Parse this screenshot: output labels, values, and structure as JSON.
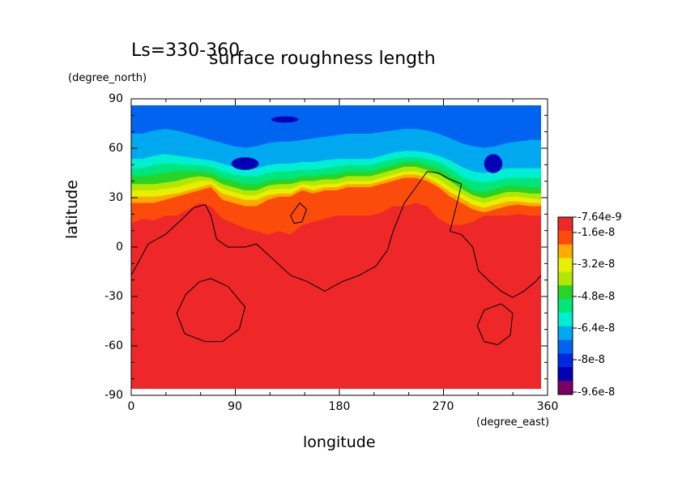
{
  "chart_data": {
    "type": "heatmap",
    "period": "Ls=330-360",
    "title": "surface roughness length",
    "xlabel": "longitude",
    "xunit": "(degree_east)",
    "ylabel": "latitude",
    "yunit": "(degree_north)",
    "xlim": [
      0,
      360
    ],
    "ylim": [
      -90,
      90
    ],
    "xticks": [
      "0",
      "90",
      "180",
      "270",
      "360"
    ],
    "yticks": [
      "90",
      "60",
      "30",
      "0",
      "-30",
      "-60",
      "-90"
    ],
    "colorbar": {
      "labels": [
        "-7.64e-9",
        "-1.6e-8",
        "-3.2e-8",
        "-4.8e-8",
        "-6.4e-8",
        "-8e-8",
        "-9.6e-8"
      ],
      "colors": [
        "#ee2828",
        "#fc4c0c",
        "#ffaa00",
        "#e6f000",
        "#b4e600",
        "#28d428",
        "#00e67a",
        "#00eed2",
        "#00a8f0",
        "#0064f0",
        "#0028e0",
        "#0000b4",
        "#7a0064"
      ]
    },
    "bands": [
      {
        "level": 0,
        "lat_boundary": [
          -30,
          -28,
          -30,
          -29,
          -30,
          -28,
          -27,
          -25,
          -26,
          -27,
          -28,
          -25,
          -22,
          -22,
          -24,
          -25,
          -24,
          -22,
          -20,
          -23,
          -26,
          -28,
          -30,
          -30,
          -28,
          -26,
          -28,
          -28,
          -29,
          -30,
          -29,
          -30,
          -30,
          -31,
          -31,
          -30,
          -30
        ]
      },
      {
        "level": 1,
        "lat_boundary": [
          15,
          18,
          17,
          20,
          20,
          24,
          28,
          26,
          18,
          15,
          12,
          10,
          8,
          10,
          8,
          14,
          16,
          18,
          20,
          20,
          20,
          20,
          22,
          26,
          26,
          28,
          26,
          18,
          14,
          14,
          16,
          20,
          20,
          20,
          21,
          20,
          20
        ]
      },
      {
        "level": 2,
        "lat_boundary": [
          28,
          28,
          28,
          30,
          32,
          34,
          36,
          38,
          30,
          28,
          26,
          26,
          30,
          32,
          32,
          36,
          34,
          36,
          36,
          38,
          38,
          38,
          40,
          42,
          44,
          44,
          42,
          38,
          32,
          28,
          24,
          22,
          24,
          26,
          27,
          26,
          26
        ]
      },
      {
        "level": 3,
        "lat_boundary": [
          32,
          32,
          32,
          33,
          34,
          36,
          38,
          40,
          34,
          32,
          30,
          30,
          33,
          34,
          34,
          38,
          36,
          38,
          38,
          40,
          40,
          40,
          42,
          44,
          46,
          46,
          44,
          40,
          35,
          31,
          27,
          25,
          27,
          29,
          29,
          28,
          28
        ]
      },
      {
        "level": 4,
        "lat_boundary": [
          36,
          36,
          36,
          37,
          38,
          40,
          42,
          42,
          37,
          35,
          33,
          33,
          36,
          37,
          37,
          40,
          39,
          40,
          40,
          42,
          42,
          42,
          44,
          46,
          48,
          48,
          46,
          43,
          38,
          34,
          30,
          28,
          30,
          32,
          32,
          31,
          30
        ]
      },
      {
        "level": 5,
        "lat_boundary": [
          40,
          40,
          40,
          41,
          42,
          44,
          45,
          44,
          40,
          38,
          36,
          36,
          39,
          40,
          40,
          42,
          42,
          43,
          43,
          45,
          45,
          45,
          47,
          49,
          51,
          51,
          49,
          46,
          42,
          37,
          33,
          31,
          33,
          35,
          35,
          34,
          34
        ]
      },
      {
        "level": 6,
        "lat_boundary": [
          45,
          45,
          46,
          47,
          48,
          48,
          48,
          47,
          44,
          42,
          40,
          40,
          42,
          43,
          43,
          45,
          45,
          46,
          46,
          48,
          48,
          48,
          50,
          52,
          54,
          54,
          52,
          50,
          46,
          41,
          36,
          35,
          37,
          39,
          39,
          38,
          38
        ]
      },
      {
        "level": 7,
        "lat_boundary": [
          50,
          50,
          52,
          53,
          53,
          52,
          52,
          51,
          48,
          46,
          45,
          45,
          47,
          48,
          48,
          49,
          49,
          50,
          51,
          52,
          52,
          52,
          54,
          56,
          57,
          57,
          56,
          54,
          50,
          45,
          42,
          41,
          42,
          44,
          44,
          44,
          44
        ]
      },
      {
        "level": 8,
        "lat_boundary": [
          56,
          56,
          58,
          59,
          58,
          57,
          56,
          55,
          53,
          51,
          50,
          50,
          52,
          53,
          53,
          54,
          54,
          55,
          56,
          56,
          56,
          56,
          58,
          60,
          61,
          61,
          60,
          58,
          55,
          51,
          48,
          47,
          48,
          50,
          50,
          50,
          50
        ]
      },
      {
        "level": 9,
        "lat_boundary": [
          72,
          72,
          74,
          75,
          74,
          72,
          70,
          68,
          66,
          64,
          63,
          64,
          66,
          67,
          67,
          68,
          69,
          70,
          71,
          72,
          72,
          72,
          73,
          74,
          75,
          75,
          74,
          72,
          69,
          66,
          64,
          63,
          64,
          66,
          67,
          68,
          68
        ]
      },
      {
        "level": 10,
        "lat_boundary": [
          90,
          90,
          90,
          90,
          90,
          90,
          90,
          90,
          90,
          90,
          90,
          90,
          90,
          90,
          90,
          90,
          90,
          90,
          90,
          90,
          90,
          90,
          90,
          90,
          90,
          90,
          90,
          90,
          90,
          90,
          90,
          90,
          90,
          90,
          90,
          90,
          90
        ]
      }
    ],
    "dark_blobs": [
      {
        "lon": 100,
        "lat": 53,
        "rx": 12,
        "ry": 4
      },
      {
        "lon": 318,
        "lat": 53,
        "rx": 8,
        "ry": 6
      },
      {
        "lon": 135,
        "lat": 81,
        "rx": 12,
        "ry": 2
      }
    ],
    "contours": [
      [
        [
          0,
          -18
        ],
        [
          15,
          2
        ],
        [
          30,
          8
        ],
        [
          45,
          18
        ],
        [
          55,
          25
        ],
        [
          65,
          27
        ],
        [
          70,
          20
        ],
        [
          75,
          5
        ],
        [
          85,
          0
        ],
        [
          100,
          0
        ],
        [
          110,
          2
        ],
        [
          125,
          -8
        ],
        [
          140,
          -18
        ],
        [
          155,
          -22
        ],
        [
          170,
          -28
        ],
        [
          185,
          -22
        ],
        [
          200,
          -18
        ],
        [
          215,
          -12
        ],
        [
          225,
          -2
        ],
        [
          230,
          10
        ],
        [
          240,
          28
        ],
        [
          250,
          38
        ],
        [
          260,
          48
        ],
        [
          270,
          47
        ],
        [
          280,
          43
        ],
        [
          290,
          40
        ],
        [
          287,
          30
        ],
        [
          280,
          10
        ],
        [
          290,
          8
        ],
        [
          300,
          0
        ],
        [
          305,
          -15
        ],
        [
          315,
          -22
        ],
        [
          325,
          -28
        ],
        [
          335,
          -32
        ],
        [
          345,
          -28
        ],
        [
          355,
          -22
        ],
        [
          360,
          -18
        ]
      ],
      [
        [
          140,
          20
        ],
        [
          148,
          28
        ],
        [
          154,
          24
        ],
        [
          150,
          16
        ],
        [
          143,
          15
        ],
        [
          140,
          20
        ]
      ],
      [
        [
          70,
          -20
        ],
        [
          85,
          -25
        ],
        [
          100,
          -38
        ],
        [
          95,
          -52
        ],
        [
          80,
          -60
        ],
        [
          65,
          -60
        ],
        [
          47,
          -55
        ],
        [
          40,
          -42
        ],
        [
          48,
          -30
        ],
        [
          60,
          -22
        ],
        [
          70,
          -20
        ]
      ],
      [
        [
          325,
          -36
        ],
        [
          335,
          -42
        ],
        [
          333,
          -56
        ],
        [
          322,
          -62
        ],
        [
          310,
          -60
        ],
        [
          304,
          -50
        ],
        [
          310,
          -40
        ],
        [
          325,
          -36
        ]
      ]
    ]
  }
}
